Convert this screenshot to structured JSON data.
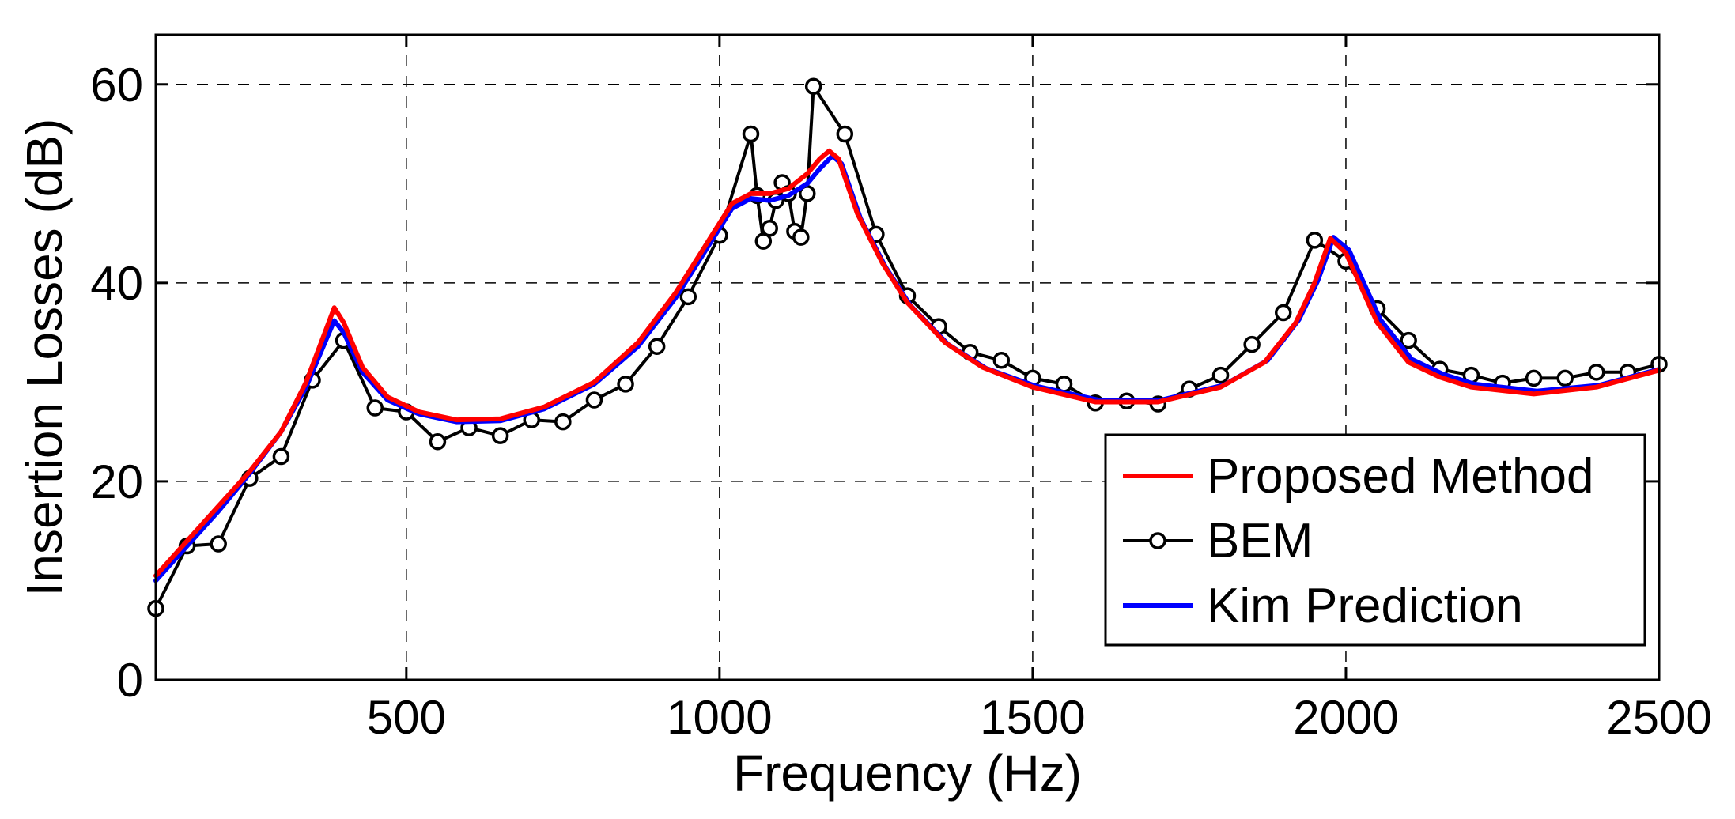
{
  "chart_data": {
    "type": "line",
    "title": "",
    "xlabel": "Frequency (Hz)",
    "ylabel": "Insertion Losses (dB)",
    "xlim": [
      100,
      2500
    ],
    "ylim": [
      0,
      65
    ],
    "xticks": [
      500,
      1000,
      1500,
      2000,
      2500
    ],
    "yticks": [
      0,
      20,
      40,
      60
    ],
    "grid": true,
    "legend_position": "bottom-right",
    "series": [
      {
        "name": "Proposed Method",
        "color": "#ff0000",
        "marker": "none",
        "x": [
          100,
          150,
          200,
          250,
          300,
          340,
          370,
          385,
          400,
          430,
          470,
          520,
          580,
          650,
          720,
          800,
          870,
          930,
          980,
          1020,
          1050,
          1080,
          1110,
          1140,
          1160,
          1175,
          1190,
          1220,
          1260,
          1300,
          1360,
          1420,
          1500,
          1600,
          1700,
          1800,
          1870,
          1920,
          1950,
          1975,
          2000,
          2050,
          2100,
          2150,
          2200,
          2300,
          2400,
          2500
        ],
        "y": [
          10.5,
          14,
          17.5,
          21,
          25,
          30,
          35,
          37.5,
          36,
          31.5,
          28.5,
          27,
          26.2,
          26.3,
          27.5,
          30,
          34,
          39,
          44,
          48,
          49,
          49,
          49.5,
          51,
          52.5,
          53.3,
          52.5,
          47,
          42,
          38,
          34,
          31.5,
          29.5,
          28,
          28,
          29.5,
          32,
          36,
          40,
          44.5,
          43,
          36,
          32,
          30.5,
          29.5,
          28.8,
          29.5,
          31.2
        ]
      },
      {
        "name": "BEM",
        "color": "#000000",
        "marker": "circle",
        "x": [
          100,
          150,
          200,
          250,
          300,
          350,
          400,
          450,
          500,
          550,
          600,
          650,
          700,
          750,
          800,
          850,
          900,
          950,
          1000,
          1050,
          1060,
          1070,
          1080,
          1090,
          1100,
          1110,
          1120,
          1130,
          1140,
          1150,
          1200,
          1250,
          1300,
          1350,
          1400,
          1450,
          1500,
          1550,
          1600,
          1650,
          1700,
          1750,
          1800,
          1850,
          1900,
          1950,
          2000,
          2050,
          2100,
          2150,
          2200,
          2250,
          2300,
          2350,
          2400,
          2450,
          2500
        ],
        "y": [
          7.2,
          13.5,
          13.7,
          20.3,
          22.5,
          30.2,
          34.2,
          27.4,
          27,
          24,
          25.4,
          24.6,
          26.2,
          26,
          28.2,
          29.8,
          33.6,
          38.6,
          44.8,
          55,
          48.8,
          44.2,
          45.5,
          48.3,
          50.1,
          49,
          45.2,
          44.6,
          49,
          59.8,
          55,
          44.9,
          38.7,
          35.6,
          33,
          32.2,
          30.4,
          29.8,
          27.9,
          28.1,
          27.8,
          29.3,
          30.7,
          33.8,
          37,
          44.3,
          42.2,
          37.4,
          34.2,
          31.3,
          30.7,
          29.9,
          30.4,
          30.4,
          31,
          31,
          31.8
        ]
      },
      {
        "name": "Kim Prediction",
        "color": "#0000ff",
        "marker": "none",
        "x": [
          100,
          150,
          200,
          250,
          300,
          340,
          370,
          385,
          400,
          430,
          470,
          520,
          580,
          650,
          720,
          800,
          870,
          930,
          980,
          1020,
          1050,
          1080,
          1110,
          1140,
          1160,
          1180,
          1195,
          1225,
          1265,
          1305,
          1365,
          1425,
          1505,
          1605,
          1705,
          1805,
          1875,
          1925,
          1955,
          1980,
          2005,
          2055,
          2105,
          2155,
          2205,
          2305,
          2405,
          2500
        ],
        "y": [
          10,
          13.5,
          17,
          20.8,
          25,
          29.5,
          34,
          36.2,
          35,
          31,
          28.2,
          26.8,
          26,
          26.1,
          27.3,
          29.8,
          33.6,
          38.5,
          43.5,
          47.5,
          48.5,
          48.3,
          48.8,
          50,
          51.5,
          52.8,
          52,
          46.5,
          41.6,
          37.7,
          33.8,
          31.4,
          29.6,
          28.2,
          28.2,
          29.7,
          32.2,
          36.3,
          40.2,
          44.6,
          43.3,
          36.3,
          32.3,
          30.8,
          29.8,
          29.1,
          29.7,
          31.3
        ]
      }
    ]
  }
}
